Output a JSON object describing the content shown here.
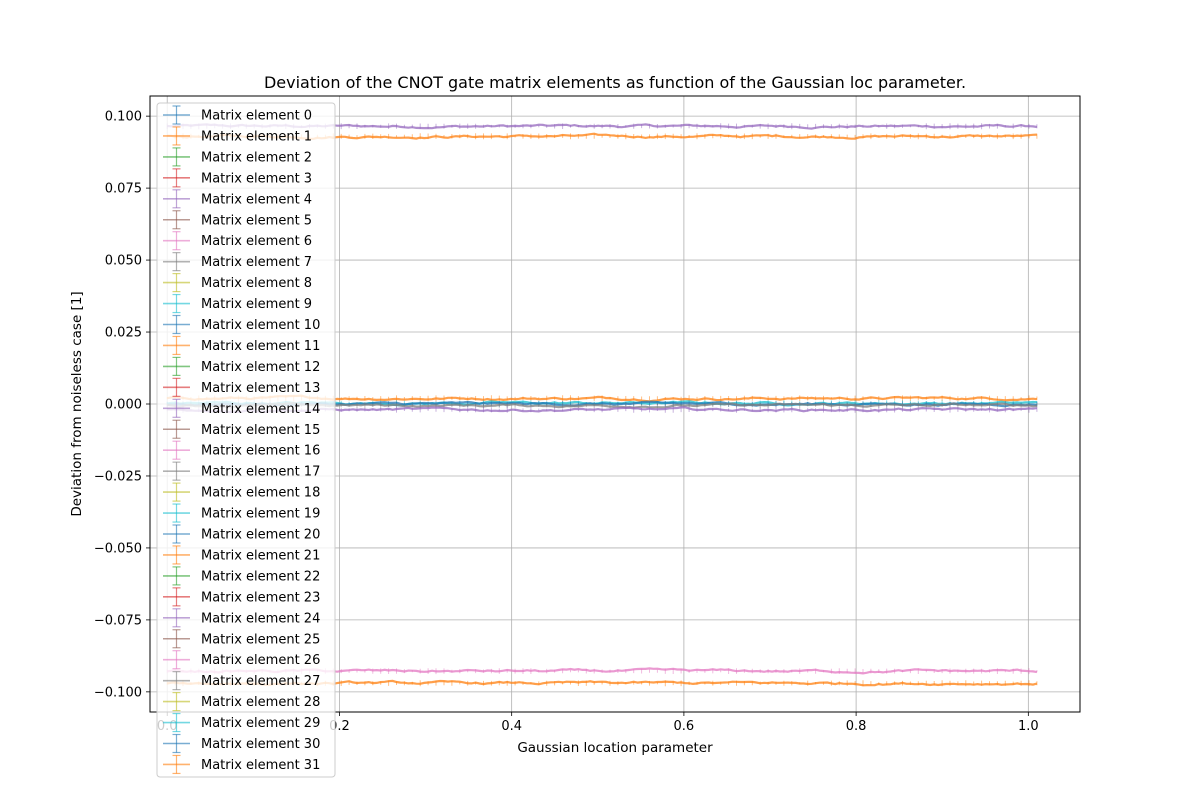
{
  "chart_data": {
    "type": "line",
    "title": "Deviation of the CNOT gate matrix elements as function of the Gaussian loc parameter.",
    "xlabel": "Gaussian location parameter",
    "ylabel": "Deviation from noiseless case [1]",
    "xlim": [
      -0.02,
      1.06
    ],
    "ylim": [
      -0.107,
      0.107
    ],
    "xticks": [
      0.0,
      0.2,
      0.4,
      0.6,
      0.8,
      1.0
    ],
    "xtick_labels": [
      "0.0",
      "0.2",
      "0.4",
      "0.6",
      "0.8",
      "1.0"
    ],
    "yticks": [
      -0.1,
      -0.075,
      -0.05,
      -0.025,
      0.0,
      0.025,
      0.05,
      0.075,
      0.1
    ],
    "ytick_labels": [
      "−0.100",
      "−0.075",
      "−0.050",
      "−0.025",
      "0.000",
      "0.025",
      "0.050",
      "0.075",
      "0.100"
    ],
    "grid": true,
    "legend_position": "upper-left",
    "x_range": [
      0.0,
      1.01
    ],
    "error_bars": true,
    "series": [
      {
        "name": "Matrix element 0",
        "color": "#1f77b4",
        "value": 0.0
      },
      {
        "name": "Matrix element 1",
        "color": "#ff7f0e",
        "value": 0.0
      },
      {
        "name": "Matrix element 2",
        "color": "#2ca02c",
        "value": 0.0
      },
      {
        "name": "Matrix element 3",
        "color": "#d62728",
        "value": 0.0
      },
      {
        "name": "Matrix element 4",
        "color": "#9467bd",
        "value": 0.0
      },
      {
        "name": "Matrix element 5",
        "color": "#8c564b",
        "value": 0.0
      },
      {
        "name": "Matrix element 6",
        "color": "#e377c2",
        "value": 0.0
      },
      {
        "name": "Matrix element 7",
        "color": "#7f7f7f",
        "value": 0.0
      },
      {
        "name": "Matrix element 8",
        "color": "#bcbd22",
        "value": 0.0
      },
      {
        "name": "Matrix element 9",
        "color": "#17becf",
        "value": 0.0
      },
      {
        "name": "Matrix element 10",
        "color": "#1f77b4",
        "value": 0.0
      },
      {
        "name": "Matrix element 11",
        "color": "#ff7f0e",
        "value": 0.0
      },
      {
        "name": "Matrix element 12",
        "color": "#2ca02c",
        "value": 0.0
      },
      {
        "name": "Matrix element 13",
        "color": "#d62728",
        "value": 0.0
      },
      {
        "name": "Matrix element 14",
        "color": "#9467bd",
        "value": 0.0
      },
      {
        "name": "Matrix element 15",
        "color": "#8c564b",
        "value": 0.0
      },
      {
        "name": "Matrix element 16",
        "color": "#e377c2",
        "value": 0.0
      },
      {
        "name": "Matrix element 17",
        "color": "#7f7f7f",
        "value": 0.0
      },
      {
        "name": "Matrix element 18",
        "color": "#bcbd22",
        "value": 0.0
      },
      {
        "name": "Matrix element 19",
        "color": "#17becf",
        "value": 0.0
      },
      {
        "name": "Matrix element 20",
        "color": "#1f77b4",
        "value": 0.0
      },
      {
        "name": "Matrix element 21",
        "color": "#ff7f0e",
        "value": 0.0
      },
      {
        "name": "Matrix element 22",
        "color": "#2ca02c",
        "value": 0.0
      },
      {
        "name": "Matrix element 23",
        "color": "#d62728",
        "value": 0.0
      },
      {
        "name": "Matrix element 24",
        "color": "#9467bd",
        "value": 0.0
      },
      {
        "name": "Matrix element 25",
        "color": "#8c564b",
        "value": 0.0
      },
      {
        "name": "Matrix element 26",
        "color": "#e377c2",
        "value": 0.0
      },
      {
        "name": "Matrix element 27",
        "color": "#7f7f7f",
        "value": 0.0
      },
      {
        "name": "Matrix element 28",
        "color": "#bcbd22",
        "value": 0.0
      },
      {
        "name": "Matrix element 29",
        "color": "#17becf",
        "value": 0.0
      },
      {
        "name": "Matrix element 30",
        "color": "#1f77b4",
        "value": 0.0
      },
      {
        "name": "Matrix element 31",
        "color": "#ff7f0e",
        "value": 0.0
      }
    ],
    "visible_levels": [
      {
        "color": "#9467bd",
        "value": 0.0965
      },
      {
        "color": "#ff7f0e",
        "value": 0.093
      },
      {
        "color": "#ff7f0e",
        "value": 0.002
      },
      {
        "color": "#17becf",
        "value": 0.0003
      },
      {
        "color": "#1f77b4",
        "value": 0.0
      },
      {
        "color": "#7f7f7f",
        "value": -0.0005
      },
      {
        "color": "#9467bd",
        "value": -0.002
      },
      {
        "color": "#e377c2",
        "value": -0.0928
      },
      {
        "color": "#ff7f0e",
        "value": -0.097
      }
    ]
  }
}
